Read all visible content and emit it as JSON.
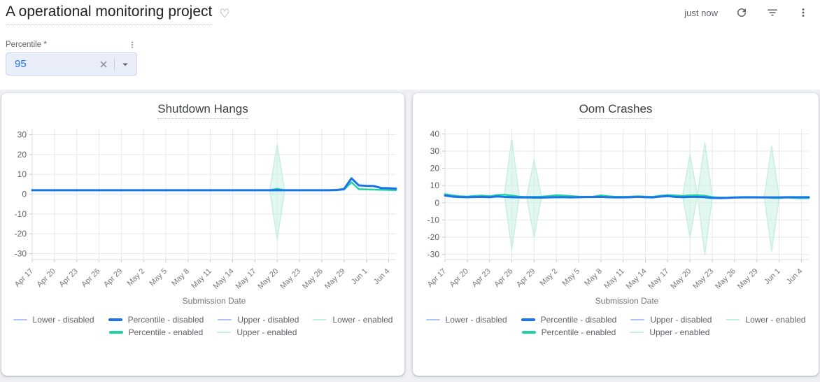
{
  "header": {
    "title": "A operational monitoring project",
    "last_refresh": "just now"
  },
  "filter": {
    "label": "Percentile *",
    "value": "95"
  },
  "colors": {
    "accent_blue": "#1a73e8",
    "accent_teal": "#22d3a7",
    "disabled_light_blue": "#a8c7fa",
    "enabled_light_teal": "#c9eee3",
    "band_fill": "#c4efe1",
    "chip_background": "#e9eef8",
    "page_background": "#eef0f3"
  },
  "chart_data": [
    {
      "type": "line",
      "title": "Shutdown Hangs",
      "xlabel": "Submission Date",
      "ylabel": "",
      "n_points": 50,
      "x_tick_labels": [
        "Apr 17",
        "Apr 20",
        "Apr 23",
        "Apr 26",
        "Apr 29",
        "May 2",
        "May 5",
        "May 8",
        "May 11",
        "May 14",
        "May 17",
        "May 20",
        "May 23",
        "May 26",
        "May 29",
        "Jun 1",
        "Jun 4"
      ],
      "x_tick_indices": [
        0,
        3,
        6,
        9,
        12,
        15,
        18,
        21,
        24,
        27,
        30,
        33,
        36,
        39,
        42,
        45,
        48
      ],
      "y_ticks": [
        30,
        20,
        10,
        0,
        -10,
        -20,
        -30
      ],
      "ylim": [
        -33,
        33
      ],
      "grid": true,
      "legend_position": "bottom",
      "legend_rows": [
        [
          0,
          1,
          2,
          3
        ],
        [
          4,
          5
        ]
      ],
      "draw_order": [
        0,
        2,
        3,
        5,
        4,
        1
      ],
      "band": {
        "upper_series": 5,
        "lower_series": 3,
        "fill": "#c4efe1",
        "opacity": 0.5
      },
      "series": [
        {
          "name": "Lower - disabled",
          "color": "#a8c7fa",
          "width": 1.5,
          "values": [
            2,
            2,
            2,
            2,
            2,
            2,
            2,
            2,
            2,
            2,
            2,
            2,
            2,
            2,
            2,
            2,
            2,
            2,
            2,
            2,
            2,
            2,
            2,
            2,
            2,
            2,
            2,
            2,
            2,
            2,
            2,
            2,
            2,
            2,
            2,
            2,
            2,
            2,
            2,
            2,
            2,
            2.1,
            2.6,
            8,
            4.4,
            4.2,
            4.1,
            3.1,
            3,
            2.8
          ]
        },
        {
          "name": "Percentile - disabled",
          "color": "#1a73e8",
          "width": 3,
          "values": [
            2,
            2,
            2,
            2,
            2,
            2,
            2,
            2,
            2,
            2,
            2,
            2,
            2,
            2,
            2,
            2,
            2,
            2,
            2,
            2,
            2,
            2,
            2,
            2,
            2,
            2,
            2,
            2,
            2,
            2,
            2,
            2,
            2,
            2,
            2,
            2,
            2,
            2,
            2,
            2,
            2,
            2.1,
            2.6,
            8,
            4.4,
            4.2,
            4.1,
            3.1,
            3,
            2.8
          ]
        },
        {
          "name": "Upper - disabled",
          "color": "#a8c7fa",
          "width": 1.5,
          "values": [
            2,
            2,
            2,
            2,
            2,
            2,
            2,
            2,
            2,
            2,
            2,
            2,
            2,
            2,
            2,
            2,
            2,
            2,
            2,
            2,
            2,
            2,
            2,
            2,
            2,
            2,
            2,
            2,
            2,
            2,
            2,
            2,
            2,
            2,
            2,
            2,
            2,
            2,
            2,
            2,
            2,
            2.1,
            2.6,
            8,
            4.4,
            4.2,
            4.1,
            3.1,
            3,
            2.8
          ]
        },
        {
          "name": "Lower - enabled",
          "color": "#c9eee3",
          "width": 1.5,
          "values": [
            2,
            2,
            2,
            2,
            2,
            2,
            2,
            2,
            2,
            2,
            2,
            2,
            2,
            2,
            2,
            2,
            2,
            2,
            2,
            2,
            2,
            2,
            2,
            2,
            2,
            2,
            2,
            2,
            2,
            2,
            2,
            2,
            2,
            -23,
            2,
            2,
            2,
            2,
            2,
            2,
            2,
            2,
            2.3,
            6,
            2.5,
            2.4,
            2.3,
            2.2,
            2.1,
            2
          ]
        },
        {
          "name": "Percentile - enabled",
          "color": "#22d3a7",
          "width": 2.5,
          "values": [
            2,
            2,
            2,
            2,
            2,
            2,
            2,
            2,
            2,
            2,
            2,
            2,
            2,
            2,
            2,
            2,
            2,
            2,
            2,
            2,
            2,
            2,
            2,
            2,
            2,
            2,
            2,
            2,
            2,
            2,
            2,
            2,
            2,
            2.7,
            2,
            2,
            2,
            2,
            2,
            2,
            2,
            2,
            2.3,
            6,
            2.5,
            2.4,
            2.3,
            2.2,
            2.1,
            2
          ]
        },
        {
          "name": "Upper - enabled",
          "color": "#c9eee3",
          "width": 1.5,
          "values": [
            2,
            2,
            2,
            2,
            2,
            2,
            2,
            2,
            2,
            2,
            2,
            2,
            2,
            2,
            2,
            2,
            2,
            2,
            2,
            2,
            2,
            2,
            2,
            2,
            2,
            2,
            2,
            2,
            2,
            2,
            2,
            2,
            2,
            25,
            2,
            2,
            2,
            2,
            2,
            2,
            2,
            2,
            2.3,
            6,
            2.5,
            2.4,
            2.3,
            2.2,
            2.1,
            2
          ]
        }
      ]
    },
    {
      "type": "line",
      "title": "Oom Crashes",
      "xlabel": "Submission Date",
      "ylabel": "",
      "n_points": 50,
      "x_tick_labels": [
        "Apr 17",
        "Apr 20",
        "Apr 23",
        "Apr 26",
        "Apr 29",
        "May 2",
        "May 5",
        "May 8",
        "May 11",
        "May 14",
        "May 17",
        "May 20",
        "May 23",
        "May 26",
        "May 29",
        "Jun 1",
        "Jun 4"
      ],
      "x_tick_indices": [
        0,
        3,
        6,
        9,
        12,
        15,
        18,
        21,
        24,
        27,
        30,
        33,
        36,
        39,
        42,
        45,
        48
      ],
      "y_ticks": [
        40,
        30,
        20,
        10,
        0,
        -10,
        -20,
        -30
      ],
      "ylim": [
        -33,
        43
      ],
      "grid": true,
      "legend_position": "bottom",
      "legend_rows": [
        [
          0,
          1,
          2,
          3
        ],
        [
          4,
          5
        ]
      ],
      "draw_order": [
        0,
        2,
        3,
        5,
        4,
        1
      ],
      "band": {
        "upper_series": 5,
        "lower_series": 3,
        "fill": "#c4efe1",
        "opacity": 0.5
      },
      "series": [
        {
          "name": "Lower - disabled",
          "color": "#a8c7fa",
          "width": 1.5,
          "values": [
            4.2,
            3.6,
            3.3,
            3.2,
            3.3,
            3.4,
            3.2,
            3.7,
            3.4,
            3.2,
            3.1,
            3.1,
            3,
            3,
            3.1,
            3.2,
            3.2,
            3.1,
            3.2,
            3.3,
            3.3,
            3.4,
            3.2,
            3.1,
            3.1,
            3.2,
            3.4,
            3.2,
            3.1,
            3.6,
            3.9,
            3.4,
            3.2,
            3.4,
            3.4,
            3.2,
            2.8,
            2.7,
            2.8,
            3,
            3.1,
            3.1,
            3.1,
            3.1,
            3.1,
            3.1,
            3.2,
            3.2,
            3.2,
            3.2
          ]
        },
        {
          "name": "Percentile - disabled",
          "color": "#1a73e8",
          "width": 3,
          "values": [
            4.2,
            3.6,
            3.3,
            3.2,
            3.3,
            3.4,
            3.2,
            3.7,
            3.4,
            3.2,
            3.1,
            3.1,
            3,
            3,
            3.1,
            3.2,
            3.2,
            3.1,
            3.2,
            3.3,
            3.3,
            3.4,
            3.2,
            3.1,
            3.1,
            3.2,
            3.4,
            3.2,
            3.1,
            3.6,
            3.9,
            3.4,
            3.2,
            3.4,
            3.4,
            3.2,
            2.8,
            2.7,
            2.8,
            3,
            3.1,
            3.1,
            3.1,
            3.1,
            3.1,
            3.1,
            3.2,
            3.2,
            3.2,
            3.2
          ]
        },
        {
          "name": "Upper - disabled",
          "color": "#a8c7fa",
          "width": 1.5,
          "values": [
            4.2,
            3.6,
            3.3,
            3.2,
            3.3,
            3.4,
            3.2,
            3.7,
            3.4,
            3.2,
            3.1,
            3.1,
            3,
            3,
            3.1,
            3.2,
            3.2,
            3.1,
            3.2,
            3.3,
            3.3,
            3.4,
            3.2,
            3.1,
            3.1,
            3.2,
            3.4,
            3.2,
            3.1,
            3.6,
            3.9,
            3.4,
            3.2,
            3.4,
            3.4,
            3.2,
            2.8,
            2.7,
            2.8,
            3,
            3.1,
            3.1,
            3.1,
            3.1,
            3.1,
            3.1,
            3.2,
            3.2,
            3.2,
            3.2
          ]
        },
        {
          "name": "Lower - enabled",
          "color": "#c9eee3",
          "width": 1.5,
          "values": [
            5,
            4.3,
            3.8,
            3.6,
            4,
            4.2,
            3.8,
            4.5,
            4.7,
            -27,
            3.6,
            3.4,
            -20,
            3.6,
            3.9,
            4.4,
            4.2,
            3.9,
            3.6,
            3.5,
            3.6,
            4.3,
            3.8,
            3.5,
            3.5,
            3.6,
            3.8,
            3.6,
            3.5,
            4.1,
            4.5,
            4.3,
            4,
            -20,
            4.4,
            -30,
            3.3,
            3,
            3,
            3.2,
            3.3,
            3.3,
            3.3,
            3.2,
            -28,
            2.7,
            3,
            2.8,
            2.6,
            2.7
          ]
        },
        {
          "name": "Percentile - enabled",
          "color": "#22d3a7",
          "width": 2.5,
          "values": [
            5,
            4.3,
            3.8,
            3.6,
            4,
            4.2,
            3.8,
            4.5,
            4.7,
            4.2,
            3.6,
            3.4,
            3.5,
            3.6,
            3.9,
            4.4,
            4.2,
            3.9,
            3.6,
            3.5,
            3.6,
            4.3,
            3.8,
            3.5,
            3.5,
            3.6,
            3.8,
            3.6,
            3.5,
            4.1,
            4.5,
            4.3,
            4,
            4.3,
            4.4,
            4.1,
            3.3,
            3,
            3,
            3.2,
            3.3,
            3.3,
            3.3,
            3.2,
            2.8,
            2.7,
            3,
            2.8,
            2.6,
            2.7
          ]
        },
        {
          "name": "Upper - enabled",
          "color": "#c9eee3",
          "width": 1.5,
          "values": [
            5,
            4.3,
            3.8,
            3.6,
            4,
            4.2,
            3.8,
            4.5,
            4.7,
            37,
            3.6,
            3.4,
            25,
            3.6,
            3.9,
            4.4,
            4.2,
            3.9,
            3.6,
            3.5,
            3.6,
            4.3,
            3.8,
            3.5,
            3.5,
            3.6,
            3.8,
            3.6,
            3.5,
            4.1,
            4.5,
            4.3,
            4,
            28,
            4.4,
            35,
            3.3,
            3,
            3,
            3.2,
            3.3,
            3.3,
            3.3,
            3.2,
            33,
            2.7,
            3,
            2.8,
            2.6,
            2.7
          ]
        }
      ]
    }
  ]
}
